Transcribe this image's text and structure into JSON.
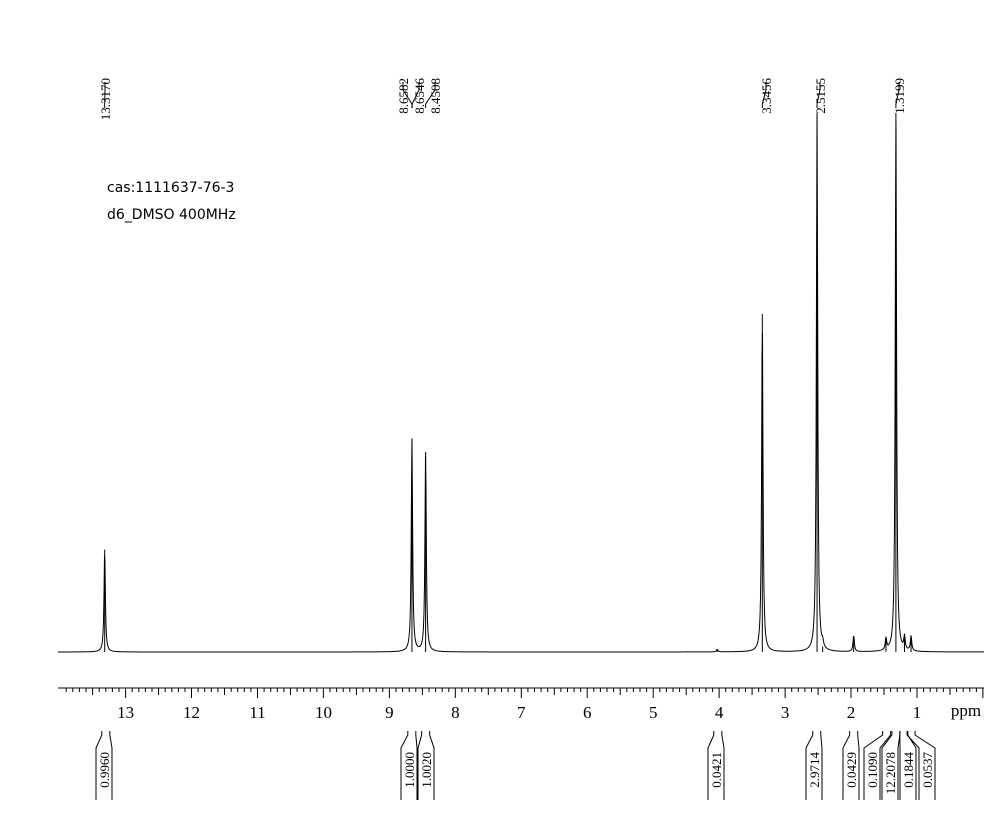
{
  "sample": {
    "cas": "cas:1111637-76-3",
    "conditions": "d6_DMSO   400MHz"
  },
  "chart_data": {
    "type": "line",
    "xlabel": "ppm",
    "xlim": [
      14,
      0
    ],
    "x_reversed": true,
    "tick_values": [
      13,
      12,
      11,
      10,
      9,
      8,
      7,
      6,
      5,
      4,
      3,
      2,
      1
    ],
    "tick_labels": [
      "13",
      "12",
      "11",
      "10",
      "9",
      "8",
      "7",
      "6",
      "5",
      "4",
      "3",
      "2",
      "1"
    ],
    "peaks": [
      {
        "ppm": 13.317,
        "rel_height": 0.19
      },
      {
        "ppm": 8.6582,
        "rel_height": 0.396
      },
      {
        "ppm": 8.4508,
        "rel_height": 0.371
      },
      {
        "ppm": 4.03,
        "rel_height": 0.005
      },
      {
        "ppm": 3.3456,
        "rel_height": 0.627
      },
      {
        "ppm": 2.5155,
        "rel_height": 1.0
      },
      {
        "ppm": 2.43,
        "rel_height": 0.01
      },
      {
        "ppm": 1.96,
        "rel_height": 0.03
      },
      {
        "ppm": 1.47,
        "rel_height": 0.022
      },
      {
        "ppm": 1.3199,
        "rel_height": 1.0
      },
      {
        "ppm": 1.19,
        "rel_height": 0.025
      },
      {
        "ppm": 1.09,
        "rel_height": 0.028
      }
    ],
    "peak_labels": [
      {
        "text": "13.3170",
        "ppm": 13.317
      },
      {
        "text": "8.6582",
        "ppm": 8.6582
      },
      {
        "text": "8.6546",
        "ppm": 8.6546
      },
      {
        "text": "8.4508",
        "ppm": 8.4508
      },
      {
        "text": "3.3456",
        "ppm": 3.3456
      },
      {
        "text": "2.5155",
        "ppm": 2.5155
      },
      {
        "text": "1.3199",
        "ppm": 1.3199
      }
    ],
    "integrals": [
      {
        "value": "0.9960",
        "ppm": 13.3
      },
      {
        "value": "1.0000",
        "ppm": 8.66
      },
      {
        "value": "1.0020",
        "ppm": 8.45
      },
      {
        "value": "0.0421",
        "ppm": 4.02
      },
      {
        "value": "2.9714",
        "ppm": 2.52
      },
      {
        "value": "0.0429",
        "ppm": 1.96
      },
      {
        "value": "0.1090",
        "ppm": 1.46
      },
      {
        "value": "12.2078",
        "ppm": 1.32
      },
      {
        "value": "0.1844",
        "ppm": 1.2
      },
      {
        "value": "0.0537",
        "ppm": 1.09
      }
    ]
  }
}
